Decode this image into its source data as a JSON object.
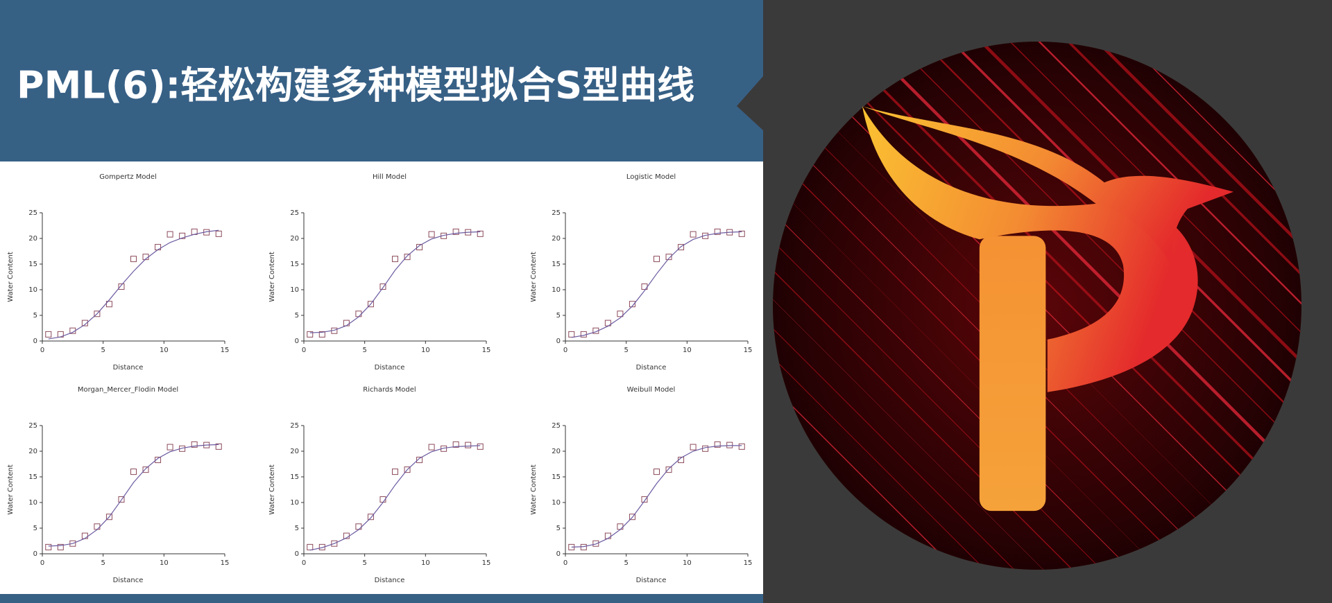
{
  "title": "PML(6):轻松构建多种模型拟合S型曲线",
  "chart_data": [
    {
      "type": "scatter",
      "title": "Gompertz Model",
      "xlabel": "Distance",
      "ylabel": "Water Content",
      "x": [
        0.5,
        1.5,
        2.5,
        3.5,
        4.5,
        5.5,
        6.5,
        7.5,
        8.5,
        9.5,
        10.5,
        11.5,
        12.5,
        13.5,
        14.5
      ],
      "series": [
        {
          "type": "scatter",
          "color": "#8b4a5a",
          "values": [
            1.3,
            1.3,
            2,
            3.5,
            5.3,
            7.2,
            10.6,
            16,
            16.4,
            18.3,
            20.8,
            20.5,
            21.3,
            21.2,
            20.9
          ]
        },
        {
          "type": "line",
          "color": "#6b5aa0",
          "values": [
            0.4,
            0.8,
            1.7,
            3.2,
            5.3,
            8.0,
            10.9,
            13.6,
            16.0,
            17.8,
            19.2,
            20.1,
            20.8,
            21.3,
            21.6
          ]
        }
      ],
      "xlim": [
        0,
        15
      ],
      "ylim": [
        0,
        25
      ],
      "xticks": [
        0,
        5,
        10,
        15
      ],
      "yticks": [
        0,
        5,
        10,
        15,
        20,
        25
      ]
    },
    {
      "type": "scatter",
      "title": "Hill Model",
      "xlabel": "Distance",
      "ylabel": "Water Content",
      "x": [
        0.5,
        1.5,
        2.5,
        3.5,
        4.5,
        5.5,
        6.5,
        7.5,
        8.5,
        9.5,
        10.5,
        11.5,
        12.5,
        13.5,
        14.5
      ],
      "series": [
        {
          "type": "scatter",
          "color": "#8b4a5a",
          "values": [
            1.3,
            1.3,
            2,
            3.5,
            5.3,
            7.2,
            10.6,
            16,
            16.4,
            18.3,
            20.8,
            20.5,
            21.3,
            21.2,
            20.9
          ]
        },
        {
          "type": "line",
          "color": "#6b5aa0",
          "values": [
            1.6,
            1.7,
            2.1,
            3.0,
            4.7,
            7.2,
            10.4,
            13.8,
            16.6,
            18.6,
            19.9,
            20.6,
            21.0,
            21.2,
            21.3
          ]
        }
      ],
      "xlim": [
        0,
        15
      ],
      "ylim": [
        0,
        25
      ],
      "xticks": [
        0,
        5,
        10,
        15
      ],
      "yticks": [
        0,
        5,
        10,
        15,
        20,
        25
      ]
    },
    {
      "type": "scatter",
      "title": "Logistic Model",
      "xlabel": "Distance",
      "ylabel": "Water Content",
      "x": [
        0.5,
        1.5,
        2.5,
        3.5,
        4.5,
        5.5,
        6.5,
        7.5,
        8.5,
        9.5,
        10.5,
        11.5,
        12.5,
        13.5,
        14.5
      ],
      "series": [
        {
          "type": "scatter",
          "color": "#8b4a5a",
          "values": [
            1.3,
            1.3,
            2,
            3.5,
            5.3,
            7.2,
            10.6,
            16,
            16.4,
            18.3,
            20.8,
            20.5,
            21.3,
            21.2,
            20.9
          ]
        },
        {
          "type": "line",
          "color": "#6b5aa0",
          "values": [
            0.7,
            1.1,
            1.8,
            2.9,
            4.5,
            6.8,
            9.8,
            13.1,
            16.1,
            18.4,
            19.8,
            20.6,
            21.0,
            21.2,
            21.3
          ]
        }
      ],
      "xlim": [
        0,
        15
      ],
      "ylim": [
        0,
        25
      ],
      "xticks": [
        0,
        5,
        10,
        15
      ],
      "yticks": [
        0,
        5,
        10,
        15,
        20,
        25
      ]
    },
    {
      "type": "scatter",
      "title": "Morgan_Mercer_Flodin Model",
      "xlabel": "Distance",
      "ylabel": "Water Content",
      "x": [
        0.5,
        1.5,
        2.5,
        3.5,
        4.5,
        5.5,
        6.5,
        7.5,
        8.5,
        9.5,
        10.5,
        11.5,
        12.5,
        13.5,
        14.5
      ],
      "series": [
        {
          "type": "scatter",
          "color": "#8b4a5a",
          "values": [
            1.3,
            1.3,
            2,
            3.5,
            5.3,
            7.2,
            10.6,
            16,
            16.4,
            18.3,
            20.8,
            20.5,
            21.3,
            21.2,
            20.9
          ]
        },
        {
          "type": "line",
          "color": "#6b5aa0",
          "values": [
            1.5,
            1.6,
            2.0,
            3.0,
            4.7,
            7.2,
            10.5,
            13.9,
            16.6,
            18.6,
            19.9,
            20.6,
            21.0,
            21.2,
            21.3
          ]
        }
      ],
      "xlim": [
        0,
        15
      ],
      "ylim": [
        0,
        25
      ],
      "xticks": [
        0,
        5,
        10,
        15
      ],
      "yticks": [
        0,
        5,
        10,
        15,
        20,
        25
      ]
    },
    {
      "type": "scatter",
      "title": "Richards Model",
      "xlabel": "Distance",
      "ylabel": "Water Content",
      "x": [
        0.5,
        1.5,
        2.5,
        3.5,
        4.5,
        5.5,
        6.5,
        7.5,
        8.5,
        9.5,
        10.5,
        11.5,
        12.5,
        13.5,
        14.5
      ],
      "series": [
        {
          "type": "scatter",
          "color": "#8b4a5a",
          "values": [
            1.3,
            1.3,
            2,
            3.5,
            5.3,
            7.2,
            10.6,
            16,
            16.4,
            18.3,
            20.8,
            20.5,
            21.3,
            21.2,
            20.9
          ]
        },
        {
          "type": "line",
          "color": "#6b5aa0",
          "values": [
            0.7,
            1.2,
            2.0,
            3.1,
            4.7,
            7.0,
            10.0,
            13.4,
            16.4,
            18.6,
            19.9,
            20.6,
            20.9,
            21.0,
            21.1
          ]
        }
      ],
      "xlim": [
        0,
        15
      ],
      "ylim": [
        0,
        25
      ],
      "xticks": [
        0,
        5,
        10,
        15
      ],
      "yticks": [
        0,
        5,
        10,
        15,
        20,
        25
      ]
    },
    {
      "type": "scatter",
      "title": "Weibull Model",
      "xlabel": "Distance",
      "ylabel": "Water Content",
      "x": [
        0.5,
        1.5,
        2.5,
        3.5,
        4.5,
        5.5,
        6.5,
        7.5,
        8.5,
        9.5,
        10.5,
        11.5,
        12.5,
        13.5,
        14.5
      ],
      "series": [
        {
          "type": "scatter",
          "color": "#8b4a5a",
          "values": [
            1.3,
            1.3,
            2,
            3.5,
            5.3,
            7.2,
            10.6,
            16,
            16.4,
            18.3,
            20.8,
            20.5,
            21.3,
            21.2,
            20.9
          ]
        },
        {
          "type": "line",
          "color": "#6b5aa0",
          "values": [
            1.3,
            1.4,
            1.9,
            3.0,
            4.7,
            7.1,
            10.3,
            13.7,
            16.6,
            18.7,
            20.0,
            20.7,
            21.0,
            21.1,
            21.1
          ]
        }
      ],
      "xlim": [
        0,
        15
      ],
      "ylim": [
        0,
        25
      ],
      "xticks": [
        0,
        5,
        10,
        15
      ],
      "yticks": [
        0,
        5,
        10,
        15,
        20,
        25
      ]
    }
  ]
}
